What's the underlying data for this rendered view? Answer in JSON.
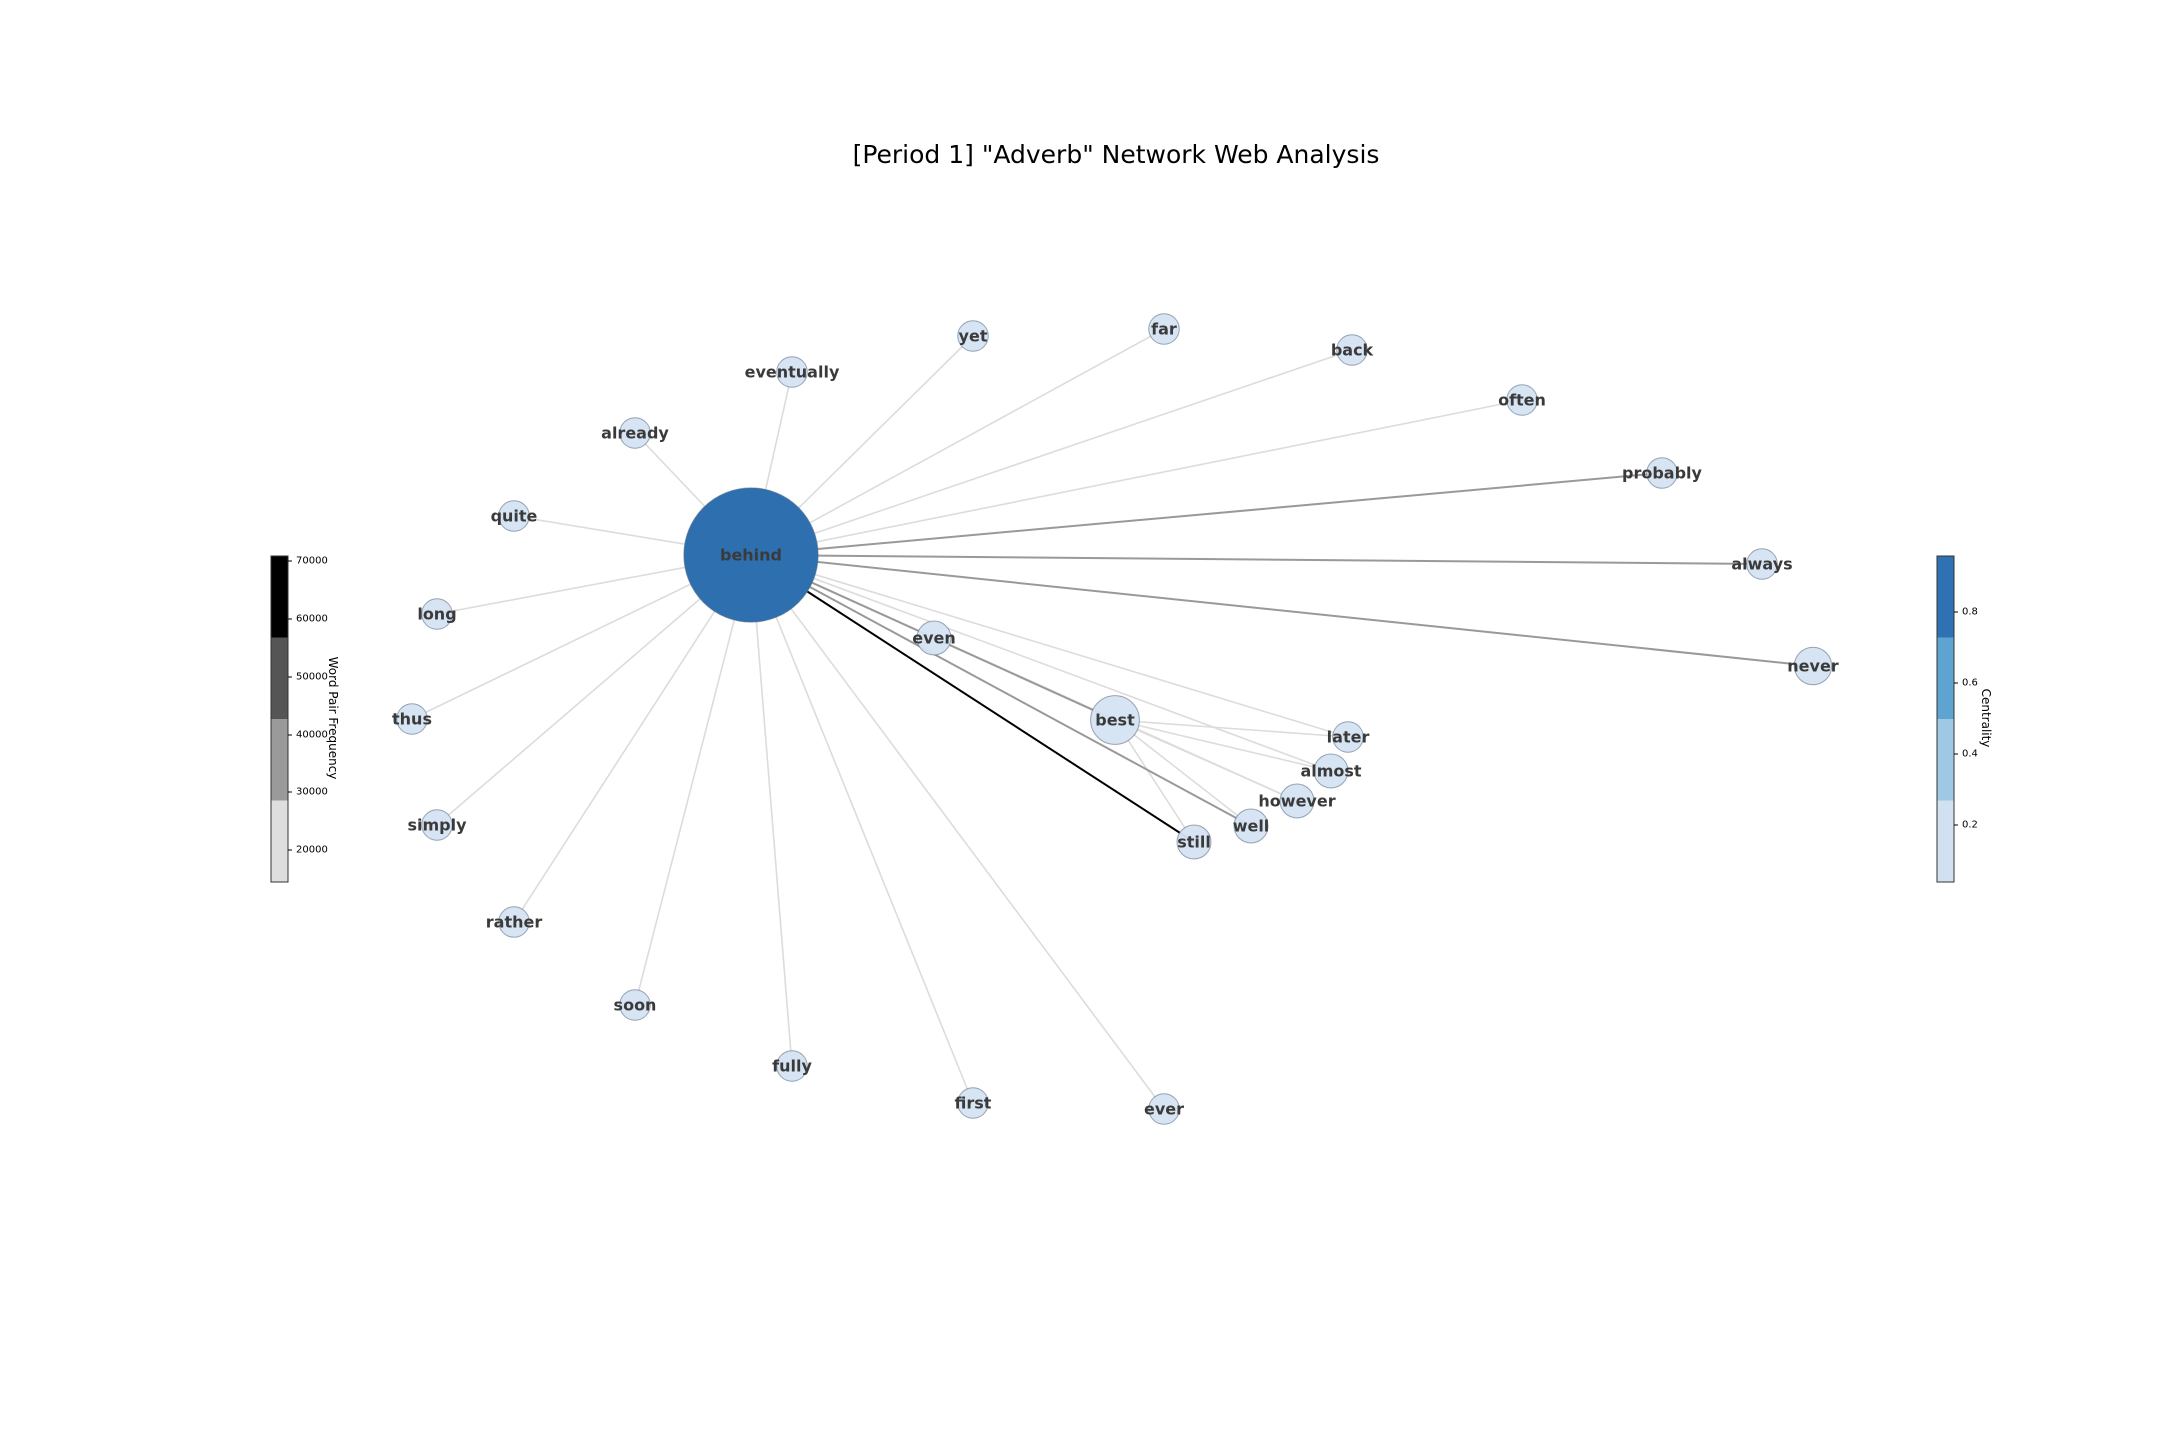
{
  "title": "[Period 1] \"Adverb\" Network Web Analysis",
  "chart_data": {
    "type": "network",
    "center": "behind",
    "nodes": [
      {
        "name": "behind",
        "centrality": 0.95
      },
      {
        "name": "best",
        "centrality": 0.2
      },
      {
        "name": "never",
        "centrality": 0.1
      },
      {
        "name": "even",
        "centrality": 0.07
      },
      {
        "name": "almost",
        "centrality": 0.07
      },
      {
        "name": "however",
        "centrality": 0.07
      },
      {
        "name": "well",
        "centrality": 0.07
      },
      {
        "name": "still",
        "centrality": 0.07
      },
      {
        "name": "later",
        "centrality": 0.04
      },
      {
        "name": "always",
        "centrality": 0.04
      },
      {
        "name": "probably",
        "centrality": 0.04
      },
      {
        "name": "often",
        "centrality": 0.04
      },
      {
        "name": "back",
        "centrality": 0.04
      },
      {
        "name": "far",
        "centrality": 0.04
      },
      {
        "name": "yet",
        "centrality": 0.04
      },
      {
        "name": "eventually",
        "centrality": 0.04
      },
      {
        "name": "already",
        "centrality": 0.04
      },
      {
        "name": "quite",
        "centrality": 0.04
      },
      {
        "name": "long",
        "centrality": 0.04
      },
      {
        "name": "thus",
        "centrality": 0.04
      },
      {
        "name": "simply",
        "centrality": 0.04
      },
      {
        "name": "rather",
        "centrality": 0.04
      },
      {
        "name": "soon",
        "centrality": 0.04
      },
      {
        "name": "fully",
        "centrality": 0.04
      },
      {
        "name": "first",
        "centrality": 0.04
      },
      {
        "name": "ever",
        "centrality": 0.04
      }
    ],
    "edges": [
      {
        "source": "behind",
        "target": "still",
        "weight": 68000
      },
      {
        "source": "behind",
        "target": "probably",
        "weight": 40000
      },
      {
        "source": "behind",
        "target": "always",
        "weight": 40000
      },
      {
        "source": "behind",
        "target": "never",
        "weight": 40000
      },
      {
        "source": "behind",
        "target": "best",
        "weight": 40000
      },
      {
        "source": "behind",
        "target": "well",
        "weight": 40000
      },
      {
        "source": "behind",
        "target": "even",
        "weight": 20000
      },
      {
        "source": "behind",
        "target": "almost",
        "weight": 20000
      },
      {
        "source": "behind",
        "target": "however",
        "weight": 20000
      },
      {
        "source": "behind",
        "target": "later",
        "weight": 20000
      },
      {
        "source": "behind",
        "target": "often",
        "weight": 20000
      },
      {
        "source": "behind",
        "target": "back",
        "weight": 20000
      },
      {
        "source": "behind",
        "target": "far",
        "weight": 20000
      },
      {
        "source": "behind",
        "target": "yet",
        "weight": 20000
      },
      {
        "source": "behind",
        "target": "eventually",
        "weight": 20000
      },
      {
        "source": "behind",
        "target": "already",
        "weight": 20000
      },
      {
        "source": "behind",
        "target": "quite",
        "weight": 20000
      },
      {
        "source": "behind",
        "target": "long",
        "weight": 20000
      },
      {
        "source": "behind",
        "target": "thus",
        "weight": 20000
      },
      {
        "source": "behind",
        "target": "simply",
        "weight": 20000
      },
      {
        "source": "behind",
        "target": "rather",
        "weight": 20000
      },
      {
        "source": "behind",
        "target": "soon",
        "weight": 20000
      },
      {
        "source": "behind",
        "target": "fully",
        "weight": 20000
      },
      {
        "source": "behind",
        "target": "first",
        "weight": 20000
      },
      {
        "source": "behind",
        "target": "ever",
        "weight": 20000
      },
      {
        "source": "best",
        "target": "later",
        "weight": 20000
      },
      {
        "source": "best",
        "target": "almost",
        "weight": 20000
      },
      {
        "source": "best",
        "target": "however",
        "weight": 20000
      },
      {
        "source": "best",
        "target": "well",
        "weight": 20000
      },
      {
        "source": "best",
        "target": "still",
        "weight": 20000
      }
    ],
    "edge_colorbar": {
      "label": "Word Pair Frequency",
      "ticks": [
        "70000",
        "60000",
        "50000",
        "40000",
        "30000",
        "20000"
      ],
      "bands": [
        "#000000",
        "#555555",
        "#9a9a9a",
        "#dedede"
      ]
    },
    "node_colorbar": {
      "label": "Centrality",
      "ticks": [
        "0.8",
        "0.6",
        "0.4",
        "0.2"
      ],
      "bands": [
        "#2f72b4",
        "#5fa3d1",
        "#9ec8e3",
        "#d2e1f1"
      ]
    }
  }
}
